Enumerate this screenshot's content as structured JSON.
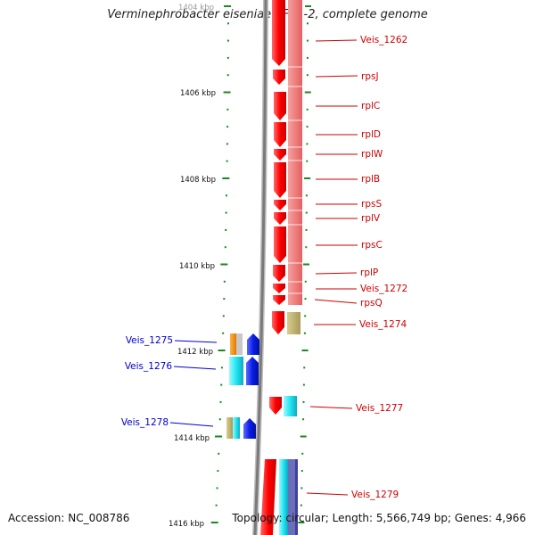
{
  "title": "Verminephrobacter eiseniae EF01-2, complete genome",
  "accession": "Accession: NC_008786",
  "topology": "Topology: circular; Length: 5,566,749 bp; Genes: 4,966",
  "scale_labels": [
    "1404 kbp",
    "1406 kbp",
    "1408 kbp",
    "1410 kbp",
    "1412 kbp",
    "1414 kbp",
    "1416 kbp"
  ],
  "colors": {
    "red_gene": "#ff1a1a",
    "blue_gene": "#0a1ee6",
    "cyan_gene": "#22e0ee",
    "red_label": "#cc0000",
    "blue_label": "#0000cc",
    "tick_green": "#1a8a1a"
  },
  "genes_right": [
    {
      "label": "Veis_1262",
      "color": "red"
    },
    {
      "label": "rpsJ",
      "color": "red"
    },
    {
      "label": "rplC",
      "color": "red"
    },
    {
      "label": "rplD",
      "color": "red"
    },
    {
      "label": "rplW",
      "color": "red"
    },
    {
      "label": "rplB",
      "color": "red"
    },
    {
      "label": "rpsS",
      "color": "red"
    },
    {
      "label": "rplV",
      "color": "red"
    },
    {
      "label": "rpsC",
      "color": "red"
    },
    {
      "label": "rplP",
      "color": "red"
    },
    {
      "label": "Veis_1272",
      "color": "red"
    },
    {
      "label": "rpsQ",
      "color": "red"
    },
    {
      "label": "Veis_1274",
      "color": "red"
    },
    {
      "label": "Veis_1277",
      "color": "red"
    },
    {
      "label": "Veis_1279",
      "color": "red"
    }
  ],
  "genes_left": [
    {
      "label": "Veis_1275",
      "color": "blue"
    },
    {
      "label": "Veis_1276",
      "color": "blue"
    },
    {
      "label": "Veis_1278",
      "color": "blue"
    }
  ]
}
